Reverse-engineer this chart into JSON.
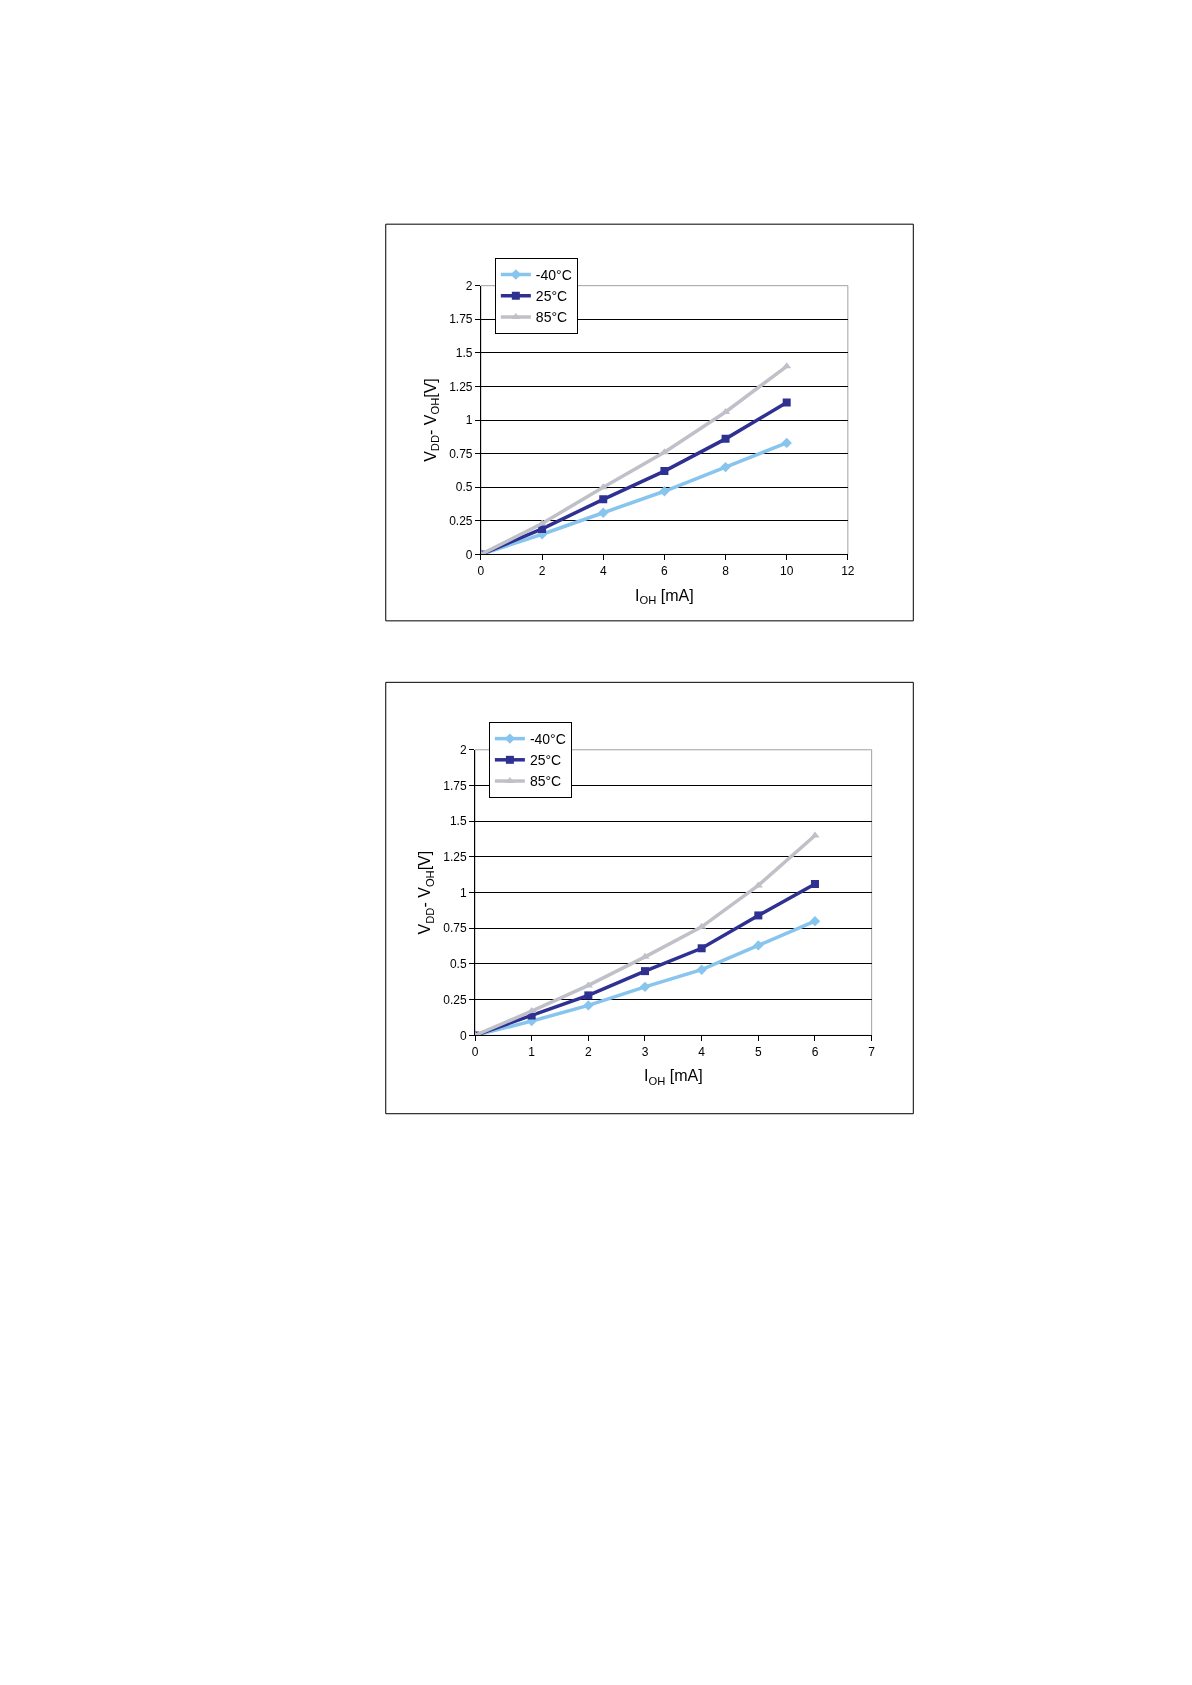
{
  "chart_data": [
    {
      "type": "line",
      "xlabel": "I$_{OH}$ [mA]",
      "ylabel": "V$_{DD}$- V$_{OH}$[V]",
      "x": [
        0,
        2,
        4,
        6,
        8,
        10
      ],
      "xlim": [
        0,
        12
      ],
      "xticks": [
        0,
        2,
        4,
        6,
        8,
        10,
        12
      ],
      "ylim": [
        0,
        2
      ],
      "yticks": [
        0,
        0.25,
        0.5,
        0.75,
        1,
        1.25,
        1.5,
        1.75,
        2
      ],
      "grid": "y",
      "legend": "top left",
      "line_style": "solid",
      "series": [
        {
          "name": "-40°C",
          "color": "#87c4ee",
          "marker": "diamond",
          "values": [
            0,
            0.15,
            0.31,
            0.47,
            0.65,
            0.83
          ]
        },
        {
          "name": "25°C",
          "color": "#2e3192",
          "marker": "square",
          "values": [
            0,
            0.19,
            0.41,
            0.62,
            0.86,
            1.13
          ]
        },
        {
          "name": "85°C",
          "color": "#c0c0c8",
          "marker": "triangle",
          "values": [
            0,
            0.23,
            0.5,
            0.76,
            1.06,
            1.4
          ]
        }
      ]
    },
    {
      "type": "line",
      "xlabel": "I$_{OH}$ [mA]",
      "ylabel": "V$_{DD}$- V$_{OH}$[V]",
      "x": [
        0,
        1,
        2,
        3,
        4,
        5,
        6
      ],
      "xlim": [
        0,
        7
      ],
      "xticks": [
        0,
        1,
        2,
        3,
        4,
        5,
        6,
        7
      ],
      "ylim": [
        0,
        2
      ],
      "yticks": [
        0,
        0.25,
        0.5,
        0.75,
        1,
        1.25,
        1.5,
        1.75,
        2
      ],
      "grid": "y",
      "legend": "top left",
      "line_style": "solid",
      "series": [
        {
          "name": "-40°C",
          "color": "#87c4ee",
          "marker": "diamond",
          "values": [
            0,
            0.1,
            0.21,
            0.34,
            0.46,
            0.63,
            0.8
          ]
        },
        {
          "name": "25°C",
          "color": "#2e3192",
          "marker": "square",
          "values": [
            0,
            0.14,
            0.28,
            0.45,
            0.61,
            0.84,
            1.06
          ]
        },
        {
          "name": "85°C",
          "color": "#c0c0c8",
          "marker": "triangle",
          "values": [
            0,
            0.17,
            0.35,
            0.55,
            0.76,
            1.05,
            1.4
          ]
        }
      ]
    }
  ]
}
